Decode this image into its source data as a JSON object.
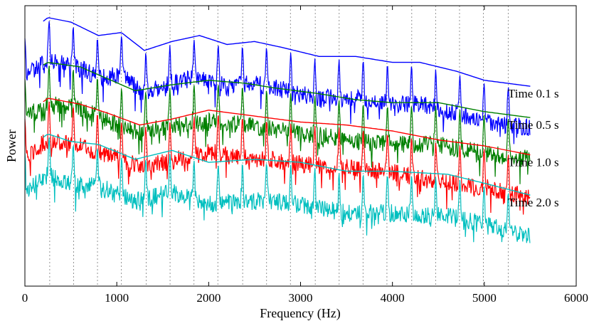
{
  "chart_data": {
    "type": "line",
    "xlabel": "Frequency (Hz)",
    "ylabel": "Power",
    "xlim": [
      0,
      6000
    ],
    "x_ticks": [
      0,
      1000,
      2000,
      3000,
      4000,
      5000,
      6000
    ],
    "x_tick_labels": [
      "0",
      "1000",
      "2000",
      "3000",
      "4000",
      "5000",
      "6000"
    ],
    "y_ticks_shown": false,
    "grid": "vertical dotted lines at harmonic frequencies",
    "harmonic_lines_hz": [
      270,
      530,
      790,
      1050,
      1320,
      1580,
      1840,
      2100,
      2370,
      2630,
      2890,
      3160,
      3420,
      3680,
      3940,
      4210,
      4470,
      4730,
      4990,
      5260
    ],
    "series": [
      {
        "name": "Time 0.1 s",
        "color": "#0000ff",
        "offset": 0,
        "envelope": [
          [
            0,
            88
          ],
          [
            250,
            100
          ],
          [
            500,
            97
          ],
          [
            800,
            88
          ],
          [
            1050,
            90
          ],
          [
            1300,
            78
          ],
          [
            1600,
            84
          ],
          [
            1900,
            88
          ],
          [
            2200,
            82
          ],
          [
            2500,
            84
          ],
          [
            2800,
            80
          ],
          [
            3200,
            74
          ],
          [
            3600,
            74
          ],
          [
            4000,
            70
          ],
          [
            4300,
            70
          ],
          [
            4700,
            64
          ],
          [
            5000,
            58
          ],
          [
            5500,
            54
          ]
        ]
      },
      {
        "name": "Time 0.5 s",
        "color": "#008000",
        "offset": -27,
        "envelope": [
          [
            0,
            88
          ],
          [
            250,
            97
          ],
          [
            600,
            94
          ],
          [
            900,
            86
          ],
          [
            1200,
            78
          ],
          [
            1600,
            82
          ],
          [
            2000,
            85
          ],
          [
            2400,
            83
          ],
          [
            2700,
            80
          ],
          [
            3200,
            76
          ],
          [
            3600,
            72
          ],
          [
            4000,
            70
          ],
          [
            4500,
            70
          ],
          [
            5000,
            64
          ],
          [
            5500,
            60
          ]
        ]
      },
      {
        "name": "Time 1.0 s",
        "color": "#ff0000",
        "offset": -52,
        "envelope": [
          [
            0,
            86
          ],
          [
            250,
            98
          ],
          [
            600,
            94
          ],
          [
            900,
            88
          ],
          [
            1250,
            80
          ],
          [
            1600,
            84
          ],
          [
            2000,
            90
          ],
          [
            2500,
            86
          ],
          [
            3000,
            82
          ],
          [
            3500,
            80
          ],
          [
            4000,
            76
          ],
          [
            4500,
            70
          ],
          [
            5000,
            66
          ],
          [
            5500,
            60
          ]
        ]
      },
      {
        "name": "Time 2.0 s",
        "color": "#00bfbf",
        "offset": -75,
        "envelope": [
          [
            0,
            86
          ],
          [
            250,
            97
          ],
          [
            500,
            92
          ],
          [
            800,
            90
          ],
          [
            1200,
            80
          ],
          [
            1600,
            86
          ],
          [
            2000,
            78
          ],
          [
            2500,
            80
          ],
          [
            3000,
            78
          ],
          [
            3500,
            72
          ],
          [
            4000,
            72
          ],
          [
            4600,
            70
          ],
          [
            5000,
            64
          ],
          [
            5500,
            56
          ]
        ]
      }
    ]
  }
}
